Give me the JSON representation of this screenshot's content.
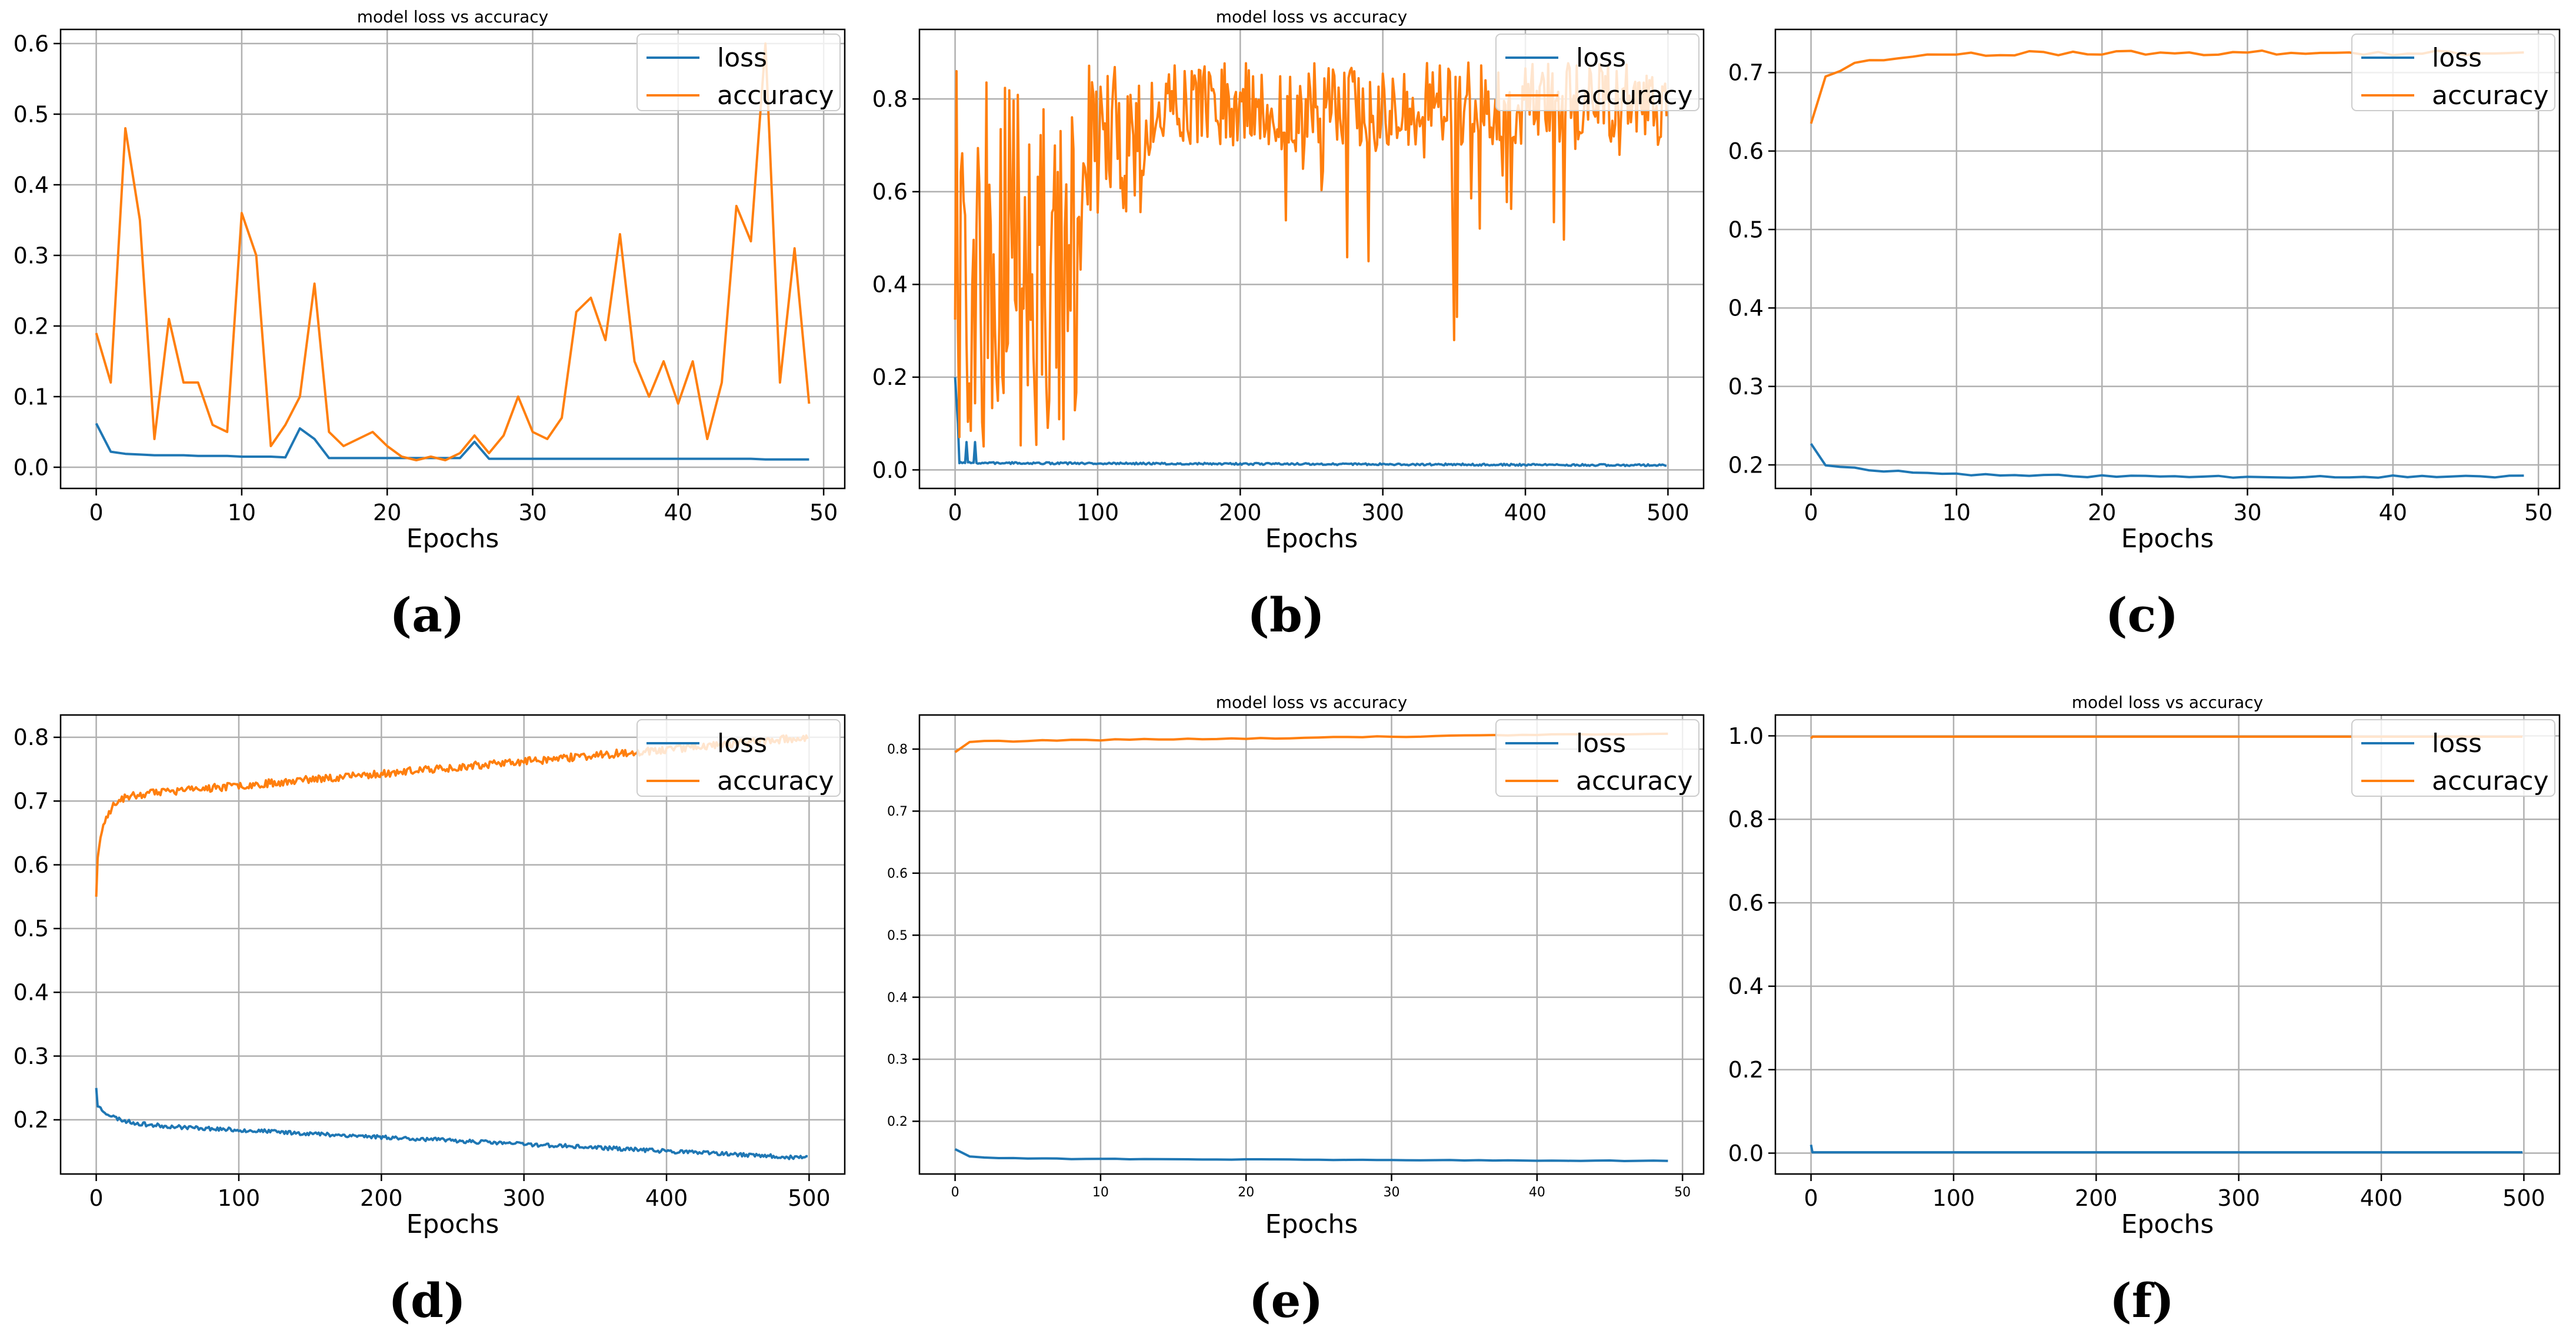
{
  "figure": {
    "colors": {
      "loss": "#1f77b4",
      "accuracy": "#ff7f0e",
      "grid": "#b0b0b0",
      "axis": "#000000"
    }
  },
  "chart_data": [
    {
      "panel": "(a)",
      "type": "line",
      "title": "model loss vs accuracy",
      "xlabel": "Epochs",
      "ylabel": "",
      "xlim": [
        -2.45,
        51.45
      ],
      "ylim": [
        -0.03,
        0.62
      ],
      "xticks": [
        0,
        10,
        20,
        30,
        40,
        50
      ],
      "yticks": [
        0.0,
        0.1,
        0.2,
        0.3,
        0.4,
        0.5,
        0.6
      ],
      "tick_decimals": 1,
      "tick_size": "large",
      "grid": true,
      "legend": "top-right",
      "gen": null,
      "series": [
        {
          "name": "loss",
          "color": "#1f77b4",
          "x_start": 0,
          "x_step": 1,
          "y": [
            0.062,
            0.022,
            0.019,
            0.018,
            0.017,
            0.017,
            0.017,
            0.016,
            0.016,
            0.016,
            0.015,
            0.015,
            0.015,
            0.014,
            0.055,
            0.04,
            0.013,
            0.013,
            0.013,
            0.013,
            0.013,
            0.013,
            0.013,
            0.013,
            0.013,
            0.013,
            0.036,
            0.012,
            0.012,
            0.012,
            0.012,
            0.012,
            0.012,
            0.012,
            0.012,
            0.012,
            0.012,
            0.012,
            0.012,
            0.012,
            0.012,
            0.012,
            0.012,
            0.012,
            0.012,
            0.012,
            0.011,
            0.011,
            0.011,
            0.011
          ]
        },
        {
          "name": "accuracy",
          "color": "#ff7f0e",
          "x_start": 0,
          "x_step": 1,
          "y": [
            0.19,
            0.12,
            0.48,
            0.35,
            0.04,
            0.21,
            0.12,
            0.12,
            0.06,
            0.05,
            0.36,
            0.3,
            0.03,
            0.06,
            0.1,
            0.26,
            0.05,
            0.03,
            0.04,
            0.05,
            0.03,
            0.015,
            0.01,
            0.015,
            0.01,
            0.02,
            0.045,
            0.02,
            0.045,
            0.1,
            0.05,
            0.04,
            0.07,
            0.22,
            0.24,
            0.18,
            0.33,
            0.15,
            0.1,
            0.15,
            0.09,
            0.15,
            0.04,
            0.12,
            0.37,
            0.32,
            0.6,
            0.12,
            0.31,
            0.09
          ]
        }
      ]
    },
    {
      "panel": "(b)",
      "type": "line",
      "title": "model loss vs accuracy",
      "xlabel": "Epochs",
      "ylabel": "",
      "xlim": [
        -25,
        525
      ],
      "ylim": [
        -0.04,
        0.95
      ],
      "xticks": [
        0,
        100,
        200,
        300,
        400,
        500
      ],
      "yticks": [
        0.0,
        0.2,
        0.4,
        0.6,
        0.8
      ],
      "tick_decimals": 1,
      "tick_size": "large",
      "grid": true,
      "legend": "top-right",
      "gen": "b",
      "series": [
        {
          "name": "loss",
          "color": "#1f77b4"
        },
        {
          "name": "accuracy",
          "color": "#ff7f0e"
        }
      ]
    },
    {
      "panel": "(c)",
      "type": "line",
      "title": "",
      "xlabel": "Epochs",
      "ylabel": "",
      "xlim": [
        -2.45,
        51.45
      ],
      "ylim": [
        0.17,
        0.755
      ],
      "xticks": [
        0,
        10,
        20,
        30,
        40,
        50
      ],
      "yticks": [
        0.2,
        0.3,
        0.4,
        0.5,
        0.6,
        0.7
      ],
      "tick_decimals": 1,
      "tick_size": "large",
      "grid": true,
      "legend": "top-right",
      "gen": "c",
      "series": [
        {
          "name": "loss",
          "color": "#1f77b4"
        },
        {
          "name": "accuracy",
          "color": "#ff7f0e"
        }
      ]
    },
    {
      "panel": "(d)",
      "type": "line",
      "title": "",
      "xlabel": "Epochs",
      "ylabel": "",
      "xlim": [
        -25,
        525
      ],
      "ylim": [
        0.115,
        0.835
      ],
      "xticks": [
        0,
        100,
        200,
        300,
        400,
        500
      ],
      "yticks": [
        0.2,
        0.3,
        0.4,
        0.5,
        0.6,
        0.7,
        0.8
      ],
      "tick_decimals": 1,
      "tick_size": "large",
      "grid": true,
      "legend": "top-right",
      "gen": "d",
      "series": [
        {
          "name": "loss",
          "color": "#1f77b4"
        },
        {
          "name": "accuracy",
          "color": "#ff7f0e"
        }
      ]
    },
    {
      "panel": "(e)",
      "type": "line",
      "title": "model loss vs accuracy",
      "xlabel": "Epochs",
      "ylabel": "",
      "xlim": [
        -2.45,
        51.45
      ],
      "ylim": [
        0.115,
        0.855
      ],
      "xticks": [
        0,
        10,
        20,
        30,
        40,
        50
      ],
      "yticks": [
        0.2,
        0.3,
        0.4,
        0.5,
        0.6,
        0.7,
        0.8
      ],
      "tick_decimals": 1,
      "tick_size": "small",
      "grid": true,
      "legend": "top-right",
      "gen": "e",
      "series": [
        {
          "name": "loss",
          "color": "#1f77b4"
        },
        {
          "name": "accuracy",
          "color": "#ff7f0e"
        }
      ]
    },
    {
      "panel": "(f)",
      "type": "line",
      "title": "model loss vs accuracy",
      "xlabel": "Epochs",
      "ylabel": "",
      "xlim": [
        -25,
        525
      ],
      "ylim": [
        -0.05,
        1.05
      ],
      "xticks": [
        0,
        100,
        200,
        300,
        400,
        500
      ],
      "yticks": [
        0.0,
        0.2,
        0.4,
        0.6,
        0.8,
        1.0
      ],
      "tick_decimals": 1,
      "tick_size": "large",
      "grid": true,
      "legend": "top-right",
      "gen": "f",
      "series": [
        {
          "name": "loss",
          "color": "#1f77b4"
        },
        {
          "name": "accuracy",
          "color": "#ff7f0e"
        }
      ]
    }
  ]
}
